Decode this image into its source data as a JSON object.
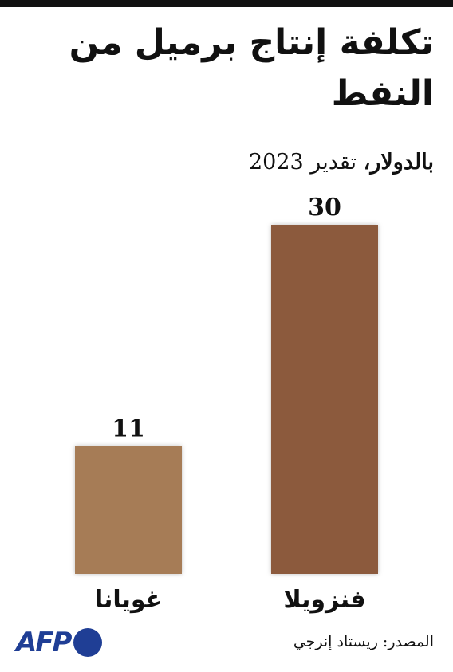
{
  "title": "تكلفة إنتاج برميل من النفط",
  "subtitle": {
    "unit": "بالدولار،",
    "estimate": "تقدير 2023"
  },
  "chart_data": {
    "type": "bar",
    "categories": [
      "فنزويلا",
      "غويانا"
    ],
    "values": [
      30,
      11
    ],
    "value_labels": [
      "30",
      "11"
    ],
    "colors": [
      "#8c5a3c",
      "#a67c57"
    ],
    "ylim": [
      0,
      30
    ],
    "grid": false,
    "legend": "none",
    "title": "تكلفة إنتاج برميل من النفط",
    "xlabel": "",
    "ylabel": ""
  },
  "source": "المصدر: ريستاد إنرجي",
  "logo": {
    "text": "AFP",
    "color": "#1f3e95"
  }
}
